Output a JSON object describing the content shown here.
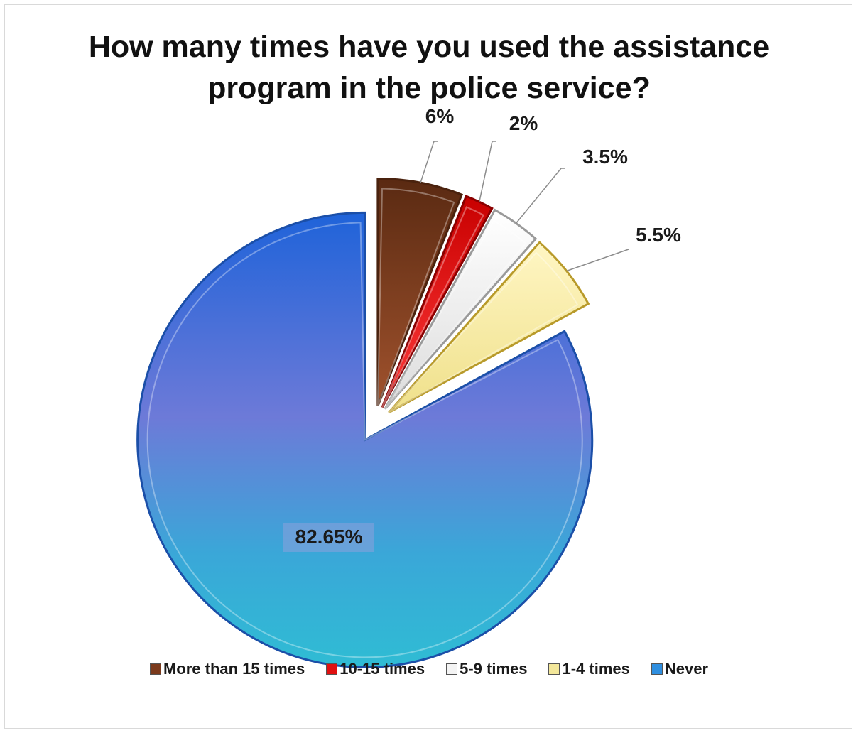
{
  "chart_data": {
    "type": "pie",
    "title": [
      "How many times have you used the assistance",
      "program in the police service?"
    ],
    "categories": [
      "More than 15 times",
      "10-15 times",
      "5-9 times",
      "1-4 times",
      "Never"
    ],
    "values": [
      6,
      2,
      3.5,
      5.5,
      82.65
    ],
    "data_labels": [
      "6%",
      "2%",
      "3.5%",
      "5.5%",
      "82.65%"
    ],
    "colors": [
      "#7b3a1c",
      "#e01010",
      "#f4f4f4",
      "#f3e79a",
      "#2f8fe0"
    ],
    "exploded": true,
    "legend_position": "bottom"
  }
}
